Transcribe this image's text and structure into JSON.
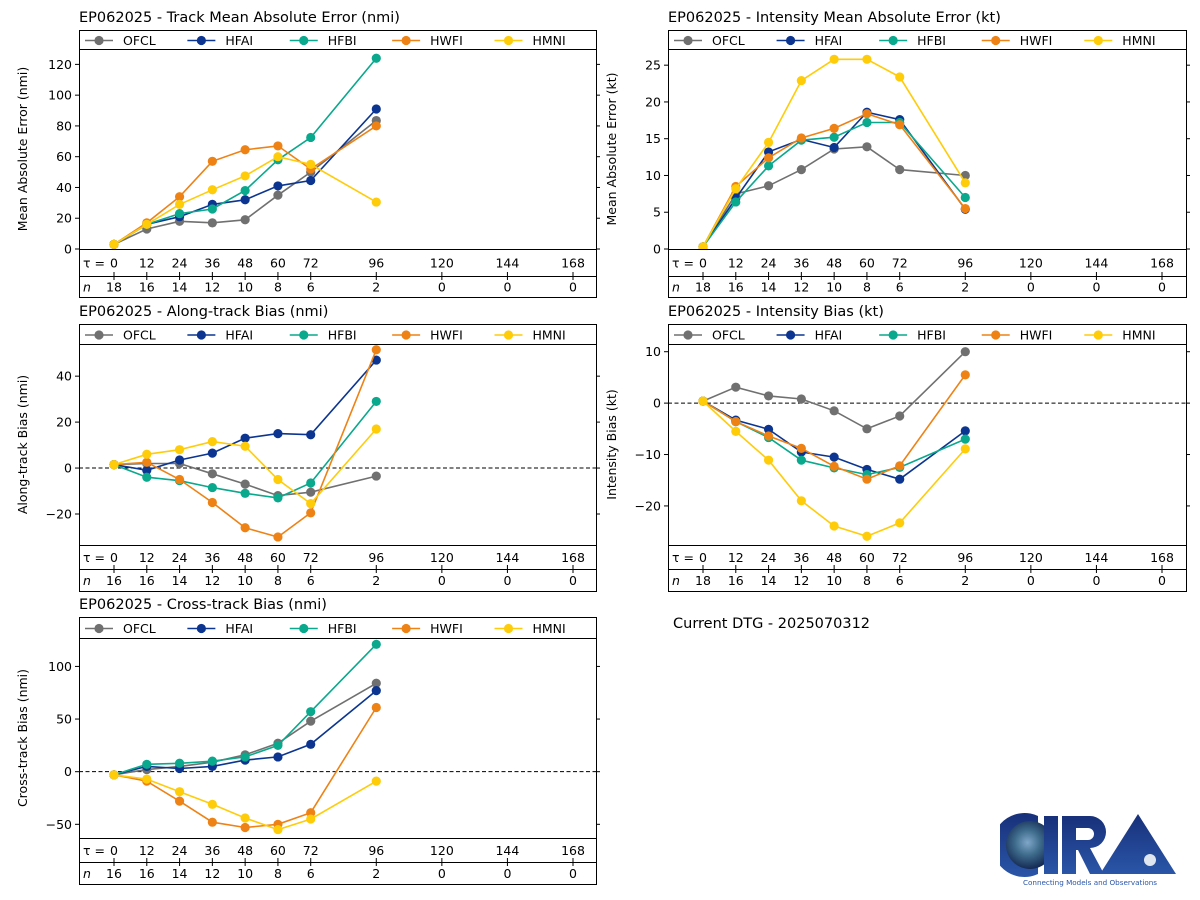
{
  "figure": {
    "current_dtg_label": "Current DTG - 2025070312",
    "logo": {
      "text": "CIRA",
      "tagline": "Connecting Models and Observations"
    }
  },
  "series_styles": [
    {
      "name": "OFCL",
      "color": "#707070"
    },
    {
      "name": "HFAI",
      "color": "#0b3590"
    },
    {
      "name": "HFBI",
      "color": "#0aa88c"
    },
    {
      "name": "HWFI",
      "color": "#ee8215"
    },
    {
      "name": "HMNI",
      "color": "#ffcc0a"
    }
  ],
  "chart_data": [
    {
      "id": "track-mae",
      "type": "line",
      "title": "EP062025 - Track Mean Absolute Error (nmi)",
      "ylabel": "Mean Absolute Error (nmi)",
      "xlabel_prefix": "τ = ",
      "n_label": "n",
      "x_ticks": [
        0,
        12,
        24,
        36,
        48,
        60,
        72,
        96,
        120,
        144,
        168
      ],
      "n_values": [
        18,
        16,
        14,
        12,
        10,
        8,
        6,
        2,
        0,
        0,
        0
      ],
      "ylim": [
        0,
        130
      ],
      "y_ticks": [
        0,
        20,
        40,
        60,
        80,
        100,
        120
      ],
      "zero_line": false,
      "x": [
        0,
        12,
        24,
        36,
        48,
        60,
        72,
        96
      ],
      "series": [
        {
          "name": "OFCL",
          "values": [
            3,
            13,
            18,
            17,
            19,
            35,
            50,
            83.5
          ]
        },
        {
          "name": "HFAI",
          "values": [
            3,
            16,
            21,
            29,
            32,
            41,
            44.5,
            91
          ]
        },
        {
          "name": "HFBI",
          "values": [
            3,
            16,
            23,
            26,
            38,
            58,
            72.5,
            124
          ]
        },
        {
          "name": "HWFI",
          "values": [
            3,
            17,
            34,
            57,
            64.5,
            67,
            52,
            80
          ]
        },
        {
          "name": "HMNI",
          "values": [
            3,
            16,
            29,
            38.5,
            47.5,
            60,
            55,
            30.5
          ]
        }
      ],
      "legend": "top"
    },
    {
      "id": "intensity-mae",
      "type": "line",
      "title": "EP062025 - Intensity Mean Absolute Error (kt)",
      "ylabel": "Mean Absolute Error (kt)",
      "xlabel_prefix": "τ = ",
      "n_label": "n",
      "x_ticks": [
        0,
        12,
        24,
        36,
        48,
        60,
        72,
        96,
        120,
        144,
        168
      ],
      "n_values": [
        18,
        16,
        14,
        12,
        10,
        8,
        6,
        2,
        0,
        0,
        0
      ],
      "ylim": [
        0,
        27.2
      ],
      "y_ticks": [
        0,
        5,
        10,
        15,
        20,
        25
      ],
      "zero_line": false,
      "x": [
        0,
        12,
        24,
        36,
        48,
        60,
        72,
        96
      ],
      "series": [
        {
          "name": "OFCL",
          "values": [
            0.3,
            7.5,
            8.6,
            10.8,
            13.6,
            13.9,
            10.8,
            10.0
          ]
        },
        {
          "name": "HFAI",
          "values": [
            0.3,
            6.9,
            13.2,
            14.9,
            13.8,
            18.6,
            17.6,
            5.4
          ]
        },
        {
          "name": "HFBI",
          "values": [
            0.3,
            6.4,
            11.3,
            14.8,
            15.2,
            17.2,
            17.2,
            7.0
          ]
        },
        {
          "name": "HWFI",
          "values": [
            0.3,
            8.5,
            12.4,
            15.1,
            16.4,
            18.4,
            16.9,
            5.5
          ]
        },
        {
          "name": "HMNI",
          "values": [
            0.3,
            8.2,
            14.5,
            22.9,
            25.8,
            25.8,
            23.4,
            9.0
          ]
        }
      ],
      "legend": "top"
    },
    {
      "id": "along-track-bias",
      "type": "line",
      "title": "EP062025 - Along-track Bias (nmi)",
      "ylabel": "Along-track Bias (nmi)",
      "xlabel_prefix": "τ = ",
      "n_label": "n",
      "x_ticks": [
        0,
        12,
        24,
        36,
        48,
        60,
        72,
        96,
        120,
        144,
        168
      ],
      "n_values": [
        16,
        16,
        14,
        12,
        10,
        8,
        6,
        2,
        0,
        0,
        0
      ],
      "ylim": [
        -33.5,
        54
      ],
      "y_ticks": [
        -20,
        0,
        20,
        40
      ],
      "zero_line": true,
      "x": [
        0,
        12,
        24,
        36,
        48,
        60,
        72,
        96
      ],
      "series": [
        {
          "name": "OFCL",
          "values": [
            1.5,
            2,
            2,
            -2.5,
            -7,
            -12,
            -10.5,
            -3.5
          ]
        },
        {
          "name": "HFAI",
          "values": [
            1.5,
            -1,
            3.5,
            6.5,
            13,
            15,
            14.5,
            47
          ]
        },
        {
          "name": "HFBI",
          "values": [
            1.5,
            -4,
            -5.5,
            -8.5,
            -11,
            -13,
            -6.5,
            29
          ]
        },
        {
          "name": "HWFI",
          "values": [
            1.5,
            2.5,
            -5,
            -15,
            -26,
            -30,
            -19.5,
            51.5
          ]
        },
        {
          "name": "HMNI",
          "values": [
            1.5,
            6,
            8,
            11.5,
            9.5,
            -5,
            -15.5,
            17
          ]
        }
      ],
      "legend": "top"
    },
    {
      "id": "intensity-bias",
      "type": "line",
      "title": "EP062025 - Intensity Bias (kt)",
      "ylabel": "Intensity Bias (kt)",
      "xlabel_prefix": "τ = ",
      "n_label": "n",
      "x_ticks": [
        0,
        12,
        24,
        36,
        48,
        60,
        72,
        96,
        120,
        144,
        168
      ],
      "n_values": [
        18,
        16,
        14,
        12,
        10,
        8,
        6,
        2,
        0,
        0,
        0
      ],
      "ylim": [
        -27.6,
        11.5
      ],
      "y_ticks": [
        -20,
        -10,
        0,
        10
      ],
      "zero_line": true,
      "x": [
        0,
        12,
        24,
        36,
        48,
        60,
        72,
        96
      ],
      "series": [
        {
          "name": "OFCL",
          "values": [
            0.4,
            3.1,
            1.4,
            0.8,
            -1.5,
            -5.0,
            -2.5,
            10.0
          ]
        },
        {
          "name": "HFAI",
          "values": [
            0.4,
            -3.3,
            -5.1,
            -9.5,
            -10.5,
            -12.9,
            -14.8,
            -5.4
          ]
        },
        {
          "name": "HFBI",
          "values": [
            0.4,
            -3.6,
            -6.7,
            -11.1,
            -12.6,
            -13.9,
            -12.5,
            -7.0
          ]
        },
        {
          "name": "HWFI",
          "values": [
            0.4,
            -3.6,
            -6.4,
            -8.8,
            -12.3,
            -14.8,
            -12.2,
            5.5
          ]
        },
        {
          "name": "HMNI",
          "values": [
            0.4,
            -5.5,
            -11.1,
            -19.0,
            -23.9,
            -25.9,
            -23.3,
            -8.9
          ]
        }
      ],
      "legend": "top"
    },
    {
      "id": "cross-track-bias",
      "type": "line",
      "title": "EP062025 - Cross-track Bias (nmi)",
      "ylabel": "Cross-track Bias (nmi)",
      "xlabel_prefix": "τ = ",
      "n_label": "n",
      "x_ticks": [
        0,
        12,
        24,
        36,
        48,
        60,
        72,
        96,
        120,
        144,
        168
      ],
      "n_values": [
        16,
        16,
        14,
        12,
        10,
        8,
        6,
        2,
        0,
        0,
        0
      ],
      "ylim": [
        -63,
        127
      ],
      "y_ticks": [
        -50,
        0,
        50,
        100
      ],
      "zero_line": true,
      "x": [
        0,
        12,
        24,
        36,
        48,
        60,
        72,
        96
      ],
      "series": [
        {
          "name": "OFCL",
          "values": [
            -3,
            2,
            5,
            9,
            16,
            27,
            48,
            84
          ]
        },
        {
          "name": "HFAI",
          "values": [
            -3,
            5,
            3,
            5,
            11,
            14,
            26,
            77
          ]
        },
        {
          "name": "HFBI",
          "values": [
            -3,
            7,
            8,
            10,
            14,
            25,
            57,
            121
          ]
        },
        {
          "name": "HWFI",
          "values": [
            -3,
            -9,
            -28,
            -48,
            -53,
            -50,
            -39,
            61
          ]
        },
        {
          "name": "HMNI",
          "values": [
            -3,
            -7,
            -19,
            -31,
            -44,
            -55,
            -45,
            -9
          ]
        }
      ],
      "legend": "top"
    }
  ]
}
